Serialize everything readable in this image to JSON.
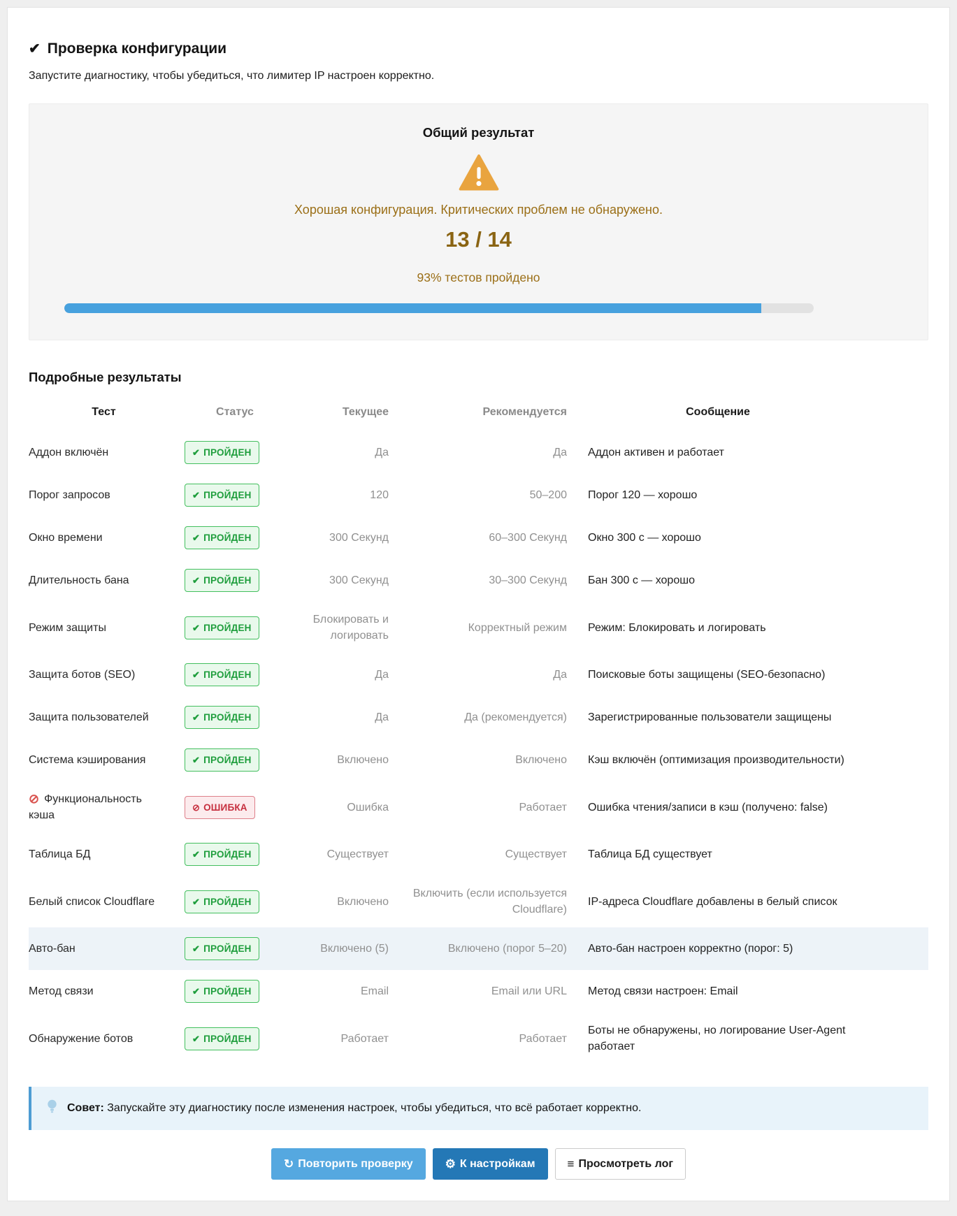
{
  "page": {
    "title": "Проверка конфигурации",
    "subtitle": "Запустите диагностику, чтобы убедиться, что лимитер IP настроен корректно."
  },
  "icons": {
    "check": "✔",
    "ban": "⊘",
    "refresh": "↻",
    "gear": "⚙",
    "list": "≡"
  },
  "colors": {
    "warning_orange": "#e9a43f",
    "summary_text": "#9b6f17",
    "progress_blue": "#47a1de",
    "success_green": "#1f9e3d",
    "error_red": "#c62f3e",
    "button_light_blue": "#55a8e0",
    "button_dark_blue": "#2478b6",
    "tip_blue": "#4d9cd3"
  },
  "summary": {
    "title": "Общий результат",
    "message": "Хорошая конфигурация. Критических проблем не обнаружено.",
    "score": "13 / 14",
    "percent_label": "93% тестов пройдено",
    "progress_percent": 93
  },
  "results": {
    "heading": "Подробные результаты",
    "columns": [
      "Тест",
      "Статус",
      "Текущее",
      "Рекомендуется",
      "Сообщение"
    ],
    "status_labels": {
      "pass": "ПРОЙДЕН",
      "error": "ОШИБКА"
    },
    "rows": [
      {
        "test": "Аддон включён",
        "status": "pass",
        "current": "Да",
        "recommended": "Да",
        "message": "Аддон активен и работает",
        "icon": false,
        "highlight": false
      },
      {
        "test": "Порог запросов",
        "status": "pass",
        "current": "120",
        "recommended": "50–200",
        "message": "Порог 120 — хорошо",
        "icon": false,
        "highlight": false
      },
      {
        "test": "Окно времени",
        "status": "pass",
        "current": "300 Секунд",
        "recommended": "60–300 Секунд",
        "message": "Окно 300 с — хорошо",
        "icon": false,
        "highlight": false
      },
      {
        "test": "Длительность бана",
        "status": "pass",
        "current": "300 Секунд",
        "recommended": "30–300 Секунд",
        "message": "Бан 300 с — хорошо",
        "icon": false,
        "highlight": false
      },
      {
        "test": "Режим защиты",
        "status": "pass",
        "current": "Блокировать и логировать",
        "recommended": "Корректный режим",
        "message": "Режим: Блокировать и логировать",
        "icon": false,
        "highlight": false
      },
      {
        "test": "Защита ботов (SEO)",
        "status": "pass",
        "current": "Да",
        "recommended": "Да",
        "message": "Поисковые боты защищены (SEO-безопасно)",
        "icon": false,
        "highlight": false
      },
      {
        "test": "Защита пользователей",
        "status": "pass",
        "current": "Да",
        "recommended": "Да (рекомендуется)",
        "message": "Зарегистрированные пользователи защищены",
        "icon": false,
        "highlight": false
      },
      {
        "test": "Система кэширования",
        "status": "pass",
        "current": "Включено",
        "recommended": "Включено",
        "message": "Кэш включён (оптимизация производительности)",
        "icon": false,
        "highlight": false
      },
      {
        "test": "Функциональность кэша",
        "status": "error",
        "current": "Ошибка",
        "recommended": "Работает",
        "message": "Ошибка чтения/записи в кэш (получено: false)",
        "icon": true,
        "highlight": false
      },
      {
        "test": "Таблица БД",
        "status": "pass",
        "current": "Существует",
        "recommended": "Существует",
        "message": "Таблица БД существует",
        "icon": false,
        "highlight": false
      },
      {
        "test": "Белый список Cloudflare",
        "status": "pass",
        "current": "Включено",
        "recommended": "Включить (если используется Cloudflare)",
        "message": "IP-адреса Cloudflare добавлены в белый список",
        "icon": false,
        "highlight": false
      },
      {
        "test": "Авто-бан",
        "status": "pass",
        "current": "Включено (5)",
        "recommended": "Включено (порог 5–20)",
        "message": "Авто-бан настроен корректно (порог: 5)",
        "icon": false,
        "highlight": true
      },
      {
        "test": "Метод связи",
        "status": "pass",
        "current": "Email",
        "recommended": "Email или URL",
        "message": "Метод связи настроен: Email",
        "icon": false,
        "highlight": false
      },
      {
        "test": "Обнаружение ботов",
        "status": "pass",
        "current": "Работает",
        "recommended": "Работает",
        "message": "Боты не обнаружены, но логирование User-Agent работает",
        "icon": false,
        "highlight": false
      }
    ]
  },
  "tip": {
    "label": "Совет:",
    "text": "Запускайте эту диагностику после изменения настроек, чтобы убедиться, что всё работает корректно."
  },
  "actions": {
    "repeat": "Повторить проверку",
    "settings": "К настройкам",
    "view_log": "Просмотреть лог"
  }
}
